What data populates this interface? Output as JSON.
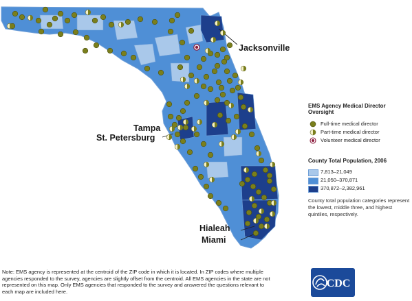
{
  "cities": {
    "jacksonville": "Jacksonville",
    "tampa": "Tampa",
    "st_petersburg": "St. Petersburg",
    "hialeah": "Hialeah",
    "miami": "Miami"
  },
  "legend": {
    "oversight_title": "EMS Agency Medical Director Oversight",
    "full_time": "Full-time medical director",
    "part_time": "Part-time medical director",
    "volunteer": "Volunteer medical director",
    "population_title": "County Total Population, 2006",
    "pop_low": "7,813–21,049",
    "pop_mid": "21,050–370,871",
    "pop_high": "370,872–2,382,961",
    "population_note": "County total population categories represent the lowest, middle three, and highest quintiles, respectively."
  },
  "footnote": "Note: EMS agency is represented at the centroid of the ZIP code in which it is located. In ZIP codes where multiple agencies responded to the survey, agencies are slightly offset from the centroid. All EMS agencies in the state are not represented on this map. Only EMS agencies that responded to the survey and answered the questions relevant to each map are included here.",
  "logo": {
    "text": "CDC"
  },
  "colors": {
    "pop_low": "#a9c8ea",
    "pop_mid": "#4f8fd6",
    "pop_high": "#1d3f8c",
    "full_time": "#7a7f1c",
    "part_time_light": "#f4f0c8",
    "volunteer": "#8b1a3c",
    "county_border": "#6f9fd8",
    "cdc_blue": "#1b4a9a"
  }
}
